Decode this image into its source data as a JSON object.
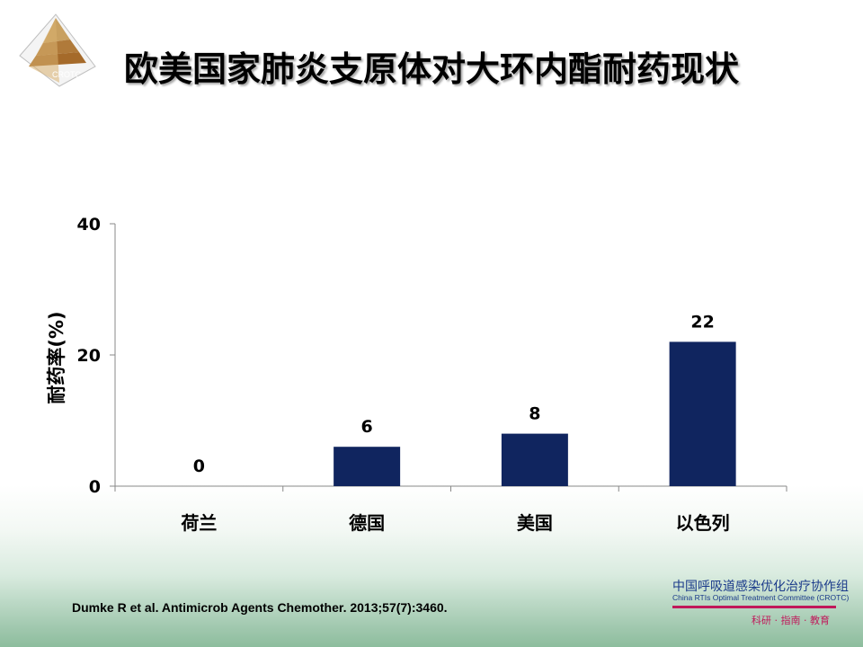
{
  "header": {
    "title": "欧美国家肺炎支原体对大环内酯耐药现状",
    "logo_text": "CROTC"
  },
  "chart_data": {
    "type": "bar",
    "categories": [
      "荷兰",
      "德国",
      "美国",
      "以色列"
    ],
    "values": [
      0,
      6,
      8,
      22
    ],
    "data_labels": [
      "0",
      "6",
      "8",
      "22"
    ],
    "ylabel": "耐药率(%)",
    "xlabel": "",
    "ylim": [
      0,
      40
    ],
    "yticks": [
      0,
      20,
      40
    ],
    "grid": false,
    "bar_color": "#10255f"
  },
  "footer": {
    "citation": "Dumke R et al. Antimicrob Agents Chemother. 2013;57(7):3460.",
    "org_name": "中国呼吸道感染优化治疗协作组",
    "org_en": "China RTIs Optimal Treatment Committee (CROTC)",
    "org_motto": "科研 · 指南 · 教育",
    "accent_color": "#c0185a"
  }
}
